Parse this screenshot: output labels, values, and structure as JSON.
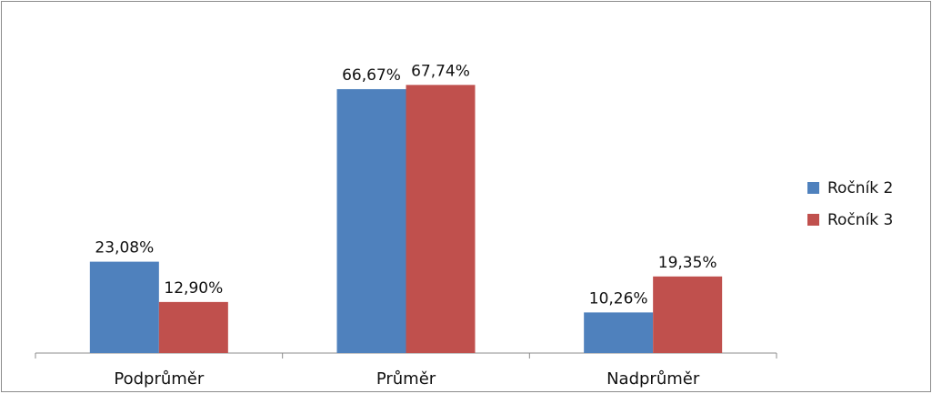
{
  "chart_data": {
    "type": "bar",
    "categories": [
      "Podprůměr",
      "Průměr",
      "Nadprůměr"
    ],
    "series": [
      {
        "name": "Ročník 2",
        "color": "#4f81bd",
        "values": [
          23.08,
          66.67,
          10.26
        ],
        "labels": [
          "23,08%",
          "66,67%",
          "10,26%"
        ]
      },
      {
        "name": "Ročník 3",
        "color": "#c0504d",
        "values": [
          12.9,
          67.74,
          19.35
        ],
        "labels": [
          "12,90%",
          "67,74%",
          "19,35%"
        ]
      }
    ],
    "legend_position": "right",
    "grid": false,
    "ylim": [
      0,
      70
    ]
  }
}
